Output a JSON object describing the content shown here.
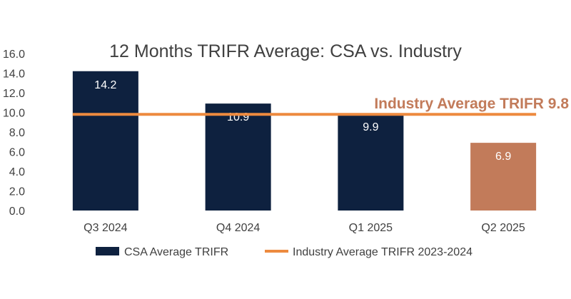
{
  "colors": {
    "csa_bar": "#0E213F",
    "highlight_bar": "#C27B5A",
    "industry_line": "#ED8A3F",
    "annotation_text": "#C27B5A",
    "axis_text": "#404040"
  },
  "chart_data": {
    "type": "bar",
    "title": "12 Months TRIFR Average: CSA vs. Industry",
    "xlabel": "",
    "ylabel": "",
    "ylim": [
      0,
      16
    ],
    "yticks": [
      "0.0",
      "2.0",
      "4.0",
      "6.0",
      "8.0",
      "10.0",
      "12.0",
      "14.0",
      "16.0"
    ],
    "categories": [
      "Q3 2024",
      "Q4 2024",
      "Q1 2025",
      "Q2 2025"
    ],
    "series": [
      {
        "name": "CSA Average TRIFR",
        "values": [
          14.2,
          10.9,
          9.9,
          6.9
        ],
        "data_labels": [
          "14.2",
          "10.9",
          "9.9",
          "6.9"
        ],
        "highlighted_index": 3
      },
      {
        "name": "Industry Average TRIFR 2023-2024",
        "type": "line",
        "value": 9.8
      }
    ],
    "annotation": "Industry Average TRIFR 9.8",
    "grid": false,
    "legend_position": "bottom"
  }
}
